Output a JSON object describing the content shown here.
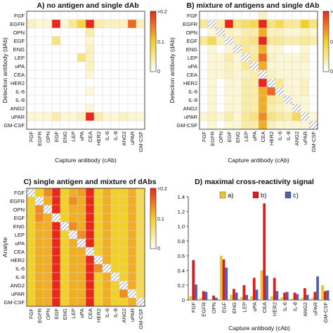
{
  "figure": {
    "colors": {
      "scale_low": "#ffffff",
      "scale_mid": "#f2d02a",
      "scale_high": "#e8281a",
      "hatch": "#777777"
    }
  },
  "chart_data": [
    {
      "type": "heatmap",
      "title": "A) no antigen and single dAb",
      "xlabel": "Capture antibody (cAb)",
      "ylabel": "Detection antibody (dAb)",
      "x_ticks": [
        "FGF",
        "EGFR",
        "OPN",
        "EGF",
        "ENG",
        "LEP",
        "uPA",
        "CEA",
        "HER2",
        "IL-6",
        "IL-8",
        "ANG2",
        "uPAR",
        "GM-CSF"
      ],
      "y_ticks": [
        "FGF",
        "EGFR",
        "OPN",
        "EGF",
        "ENG",
        "LEP",
        "uPA",
        "CEA",
        "HER2",
        "IL-6",
        "IL-8",
        "ANG2",
        "uPAR",
        "GM-CSF"
      ],
      "colorbar": {
        "ticks": [
          ">0.2",
          "0.1",
          "0"
        ],
        "vmin": 0,
        "vmax": 0.2
      },
      "values": [
        [
          0,
          0,
          0,
          0,
          0,
          0,
          0,
          0,
          0,
          0,
          0,
          0,
          0,
          0
        ],
        [
          0.03,
          0.02,
          0.02,
          0.22,
          0.02,
          0.05,
          0.09,
          0.22,
          0.04,
          0.03,
          0.03,
          0.03,
          0.16,
          0.03
        ],
        [
          0,
          0,
          0,
          0,
          0,
          0,
          0,
          0.04,
          0,
          0,
          0,
          0,
          0,
          0
        ],
        [
          0,
          0,
          0,
          0.06,
          0,
          0,
          0,
          0.02,
          0,
          0,
          0,
          0,
          0,
          0
        ],
        [
          0,
          0,
          0,
          0,
          0,
          0,
          0,
          0.03,
          0,
          0,
          0,
          0,
          0,
          0
        ],
        [
          0,
          0,
          0,
          0,
          0,
          0,
          0.06,
          0.03,
          0,
          0,
          0,
          0,
          0,
          0
        ],
        [
          0,
          0,
          0,
          0,
          0,
          0,
          0,
          0.03,
          0,
          0,
          0,
          0,
          0,
          0
        ],
        [
          0,
          0,
          0,
          0,
          0,
          0,
          0,
          0.02,
          0,
          0,
          0,
          0,
          0,
          0
        ],
        [
          0,
          0,
          0,
          0,
          0,
          0,
          0,
          0,
          0,
          0,
          0,
          0,
          0,
          0
        ],
        [
          0,
          0,
          0,
          0,
          0,
          0,
          0,
          0.02,
          0,
          0,
          0,
          0,
          0,
          0
        ],
        [
          0,
          0,
          0,
          0,
          0,
          0,
          0,
          0,
          0,
          0,
          0,
          0,
          0,
          0
        ],
        [
          0,
          0,
          0,
          0,
          0,
          0,
          0,
          0.02,
          0,
          0,
          0,
          0,
          0,
          0
        ],
        [
          0.02,
          0.02,
          0.02,
          0.04,
          0.02,
          0.02,
          0.03,
          0.22,
          0.04,
          0.02,
          0.02,
          0.03,
          0.02,
          0.02
        ],
        [
          0,
          0,
          0,
          0,
          0,
          0,
          0,
          0,
          0,
          0,
          0,
          0,
          0,
          0
        ]
      ],
      "hatched": []
    },
    {
      "type": "heatmap",
      "title": "B) mixture of antigens and single dAb",
      "xlabel": "Capture antibody (cAb)",
      "ylabel": "Detection antibody (dAb)",
      "x_ticks": [
        "FGF",
        "EGFR",
        "OPN",
        "EGF",
        "ENG",
        "LEP",
        "uPA",
        "CEA",
        "HER2",
        "IL-6",
        "IL-8",
        "ANG2",
        "uPAR",
        "GM-CSF"
      ],
      "y_ticks": [
        "FGF",
        "EGFR",
        "OPN",
        "EGF",
        "ENG",
        "LEP",
        "uPA",
        "CEA",
        "HER2",
        "IL-6",
        "IL-8",
        "ANG2",
        "uPAR",
        "GM-CSF"
      ],
      "colorbar": {
        "ticks": [
          ">0.2",
          "0.1",
          "0"
        ],
        "vmin": 0,
        "vmax": 0.2
      },
      "values": [
        [
          0,
          0,
          0,
          0,
          0,
          0,
          0,
          0.03,
          0,
          0,
          0,
          0,
          0,
          0
        ],
        [
          0.05,
          0,
          0.04,
          0.22,
          0.06,
          0.07,
          0.08,
          0.22,
          0.06,
          0.08,
          0.05,
          0.05,
          0.1,
          0.06
        ],
        [
          0,
          0.02,
          0,
          0.03,
          0.02,
          0.04,
          0.04,
          0.12,
          0.03,
          0.03,
          0.02,
          0.02,
          0.03,
          0.02
        ],
        [
          0.05,
          0.08,
          0.03,
          0,
          0.04,
          0.05,
          0.06,
          0.22,
          0.05,
          0.05,
          0.04,
          0.04,
          0.05,
          0.04
        ],
        [
          0,
          0.02,
          0,
          0.02,
          0,
          0.05,
          0.04,
          0.12,
          0.02,
          0.02,
          0,
          0,
          0.02,
          0
        ],
        [
          0,
          0.02,
          0.02,
          0.04,
          0.02,
          0,
          0.05,
          0.16,
          0.03,
          0.02,
          0.02,
          0.02,
          0.03,
          0
        ],
        [
          0,
          0.02,
          0.02,
          0.03,
          0.02,
          0.05,
          0,
          0.12,
          0.02,
          0.02,
          0.02,
          0.02,
          0.02,
          0
        ],
        [
          0,
          0.02,
          0.02,
          0.03,
          0.02,
          0.03,
          0.04,
          0,
          0.03,
          0.02,
          0.02,
          0.02,
          0.02,
          0
        ],
        [
          0,
          0.02,
          0,
          0.02,
          0.02,
          0.04,
          0.04,
          0.22,
          0,
          0.05,
          0.02,
          0.02,
          0.03,
          0
        ],
        [
          0,
          0.02,
          0,
          0.02,
          0.02,
          0.04,
          0.04,
          0.12,
          0.16,
          0,
          0.02,
          0.02,
          0.03,
          0
        ],
        [
          0,
          0.02,
          0,
          0.02,
          0.02,
          0.04,
          0.04,
          0.12,
          0.05,
          0.04,
          0,
          0.02,
          0.02,
          0
        ],
        [
          0,
          0.02,
          0,
          0.02,
          0.02,
          0.04,
          0.04,
          0.12,
          0.04,
          0.03,
          0.02,
          0,
          0.02,
          0
        ],
        [
          0.02,
          0.03,
          0.02,
          0.04,
          0.02,
          0.05,
          0.06,
          0.14,
          0.06,
          0.05,
          0.04,
          0.08,
          0,
          0.02
        ],
        [
          0,
          0.02,
          0,
          0.02,
          0.02,
          0.04,
          0.04,
          0.12,
          0.03,
          0.02,
          0.02,
          0.02,
          0.02,
          0
        ]
      ],
      "hatched": [
        [
          1,
          1
        ],
        [
          2,
          2
        ],
        [
          3,
          3
        ],
        [
          4,
          4
        ],
        [
          5,
          5
        ],
        [
          6,
          6
        ],
        [
          7,
          7
        ],
        [
          8,
          8
        ],
        [
          9,
          9
        ],
        [
          10,
          10
        ],
        [
          11,
          11
        ],
        [
          12,
          12
        ],
        [
          13,
          13
        ]
      ]
    },
    {
      "type": "heatmap",
      "title": "C) single antigen and mixture of dAbs",
      "xlabel": "Capture antibody (cAb)",
      "ylabel": "Analyte",
      "x_ticks": [
        "FGF",
        "EGFR",
        "OPN",
        "EGF",
        "ENG",
        "LEP",
        "uPA",
        "CEA",
        "HER2",
        "IL-6",
        "IL-8",
        "ANG2",
        "uPAR",
        "GM-CSF"
      ],
      "y_ticks": [
        "FGF",
        "EGFR",
        "OPN",
        "EGF",
        "ENG",
        "LEP",
        "uPA",
        "CEA",
        "HER2",
        "IL-6",
        "IL-8",
        "ANG2",
        "uPAR",
        "GM-CSF"
      ],
      "colorbar": {
        "ticks": [
          ">0.2",
          "0.1",
          "0"
        ],
        "vmin": 0,
        "vmax": 0.2
      },
      "values": [
        [
          0,
          0.1,
          0.14,
          0.22,
          0.1,
          0.12,
          0.13,
          0.22,
          0.1,
          0.12,
          0.1,
          0.1,
          0.12,
          0.08
        ],
        [
          0.1,
          0,
          0.12,
          0.22,
          0.1,
          0.14,
          0.12,
          0.22,
          0.1,
          0.12,
          0.1,
          0.1,
          0.12,
          0.08
        ],
        [
          0.1,
          0.14,
          0,
          0.22,
          0.1,
          0.12,
          0.12,
          0.22,
          0.1,
          0.12,
          0.1,
          0.1,
          0.12,
          0.08
        ],
        [
          0.1,
          0.14,
          0.12,
          0,
          0.1,
          0.12,
          0.12,
          0.22,
          0.1,
          0.12,
          0.1,
          0.1,
          0.12,
          0.08
        ],
        [
          0.1,
          0.12,
          0.12,
          0.22,
          0,
          0.14,
          0.12,
          0.22,
          0.1,
          0.12,
          0.1,
          0.1,
          0.12,
          0.08
        ],
        [
          0.1,
          0.12,
          0.12,
          0.22,
          0.1,
          0,
          0.14,
          0.22,
          0.1,
          0.12,
          0.1,
          0.1,
          0.12,
          0.08
        ],
        [
          0.1,
          0.12,
          0.12,
          0.22,
          0.1,
          0.12,
          0,
          0.22,
          0.1,
          0.12,
          0.1,
          0.1,
          0.12,
          0.08
        ],
        [
          0.1,
          0.12,
          0.12,
          0.22,
          0.1,
          0.12,
          0.12,
          0,
          0.1,
          0.12,
          0.1,
          0.1,
          0.12,
          0.08
        ],
        [
          0.1,
          0.12,
          0.12,
          0.22,
          0.1,
          0.12,
          0.12,
          0.22,
          0,
          0.12,
          0.1,
          0.1,
          0.12,
          0.08
        ],
        [
          0.1,
          0.12,
          0.12,
          0.22,
          0.1,
          0.12,
          0.12,
          0.22,
          0.14,
          0,
          0.1,
          0.1,
          0.12,
          0.08
        ],
        [
          0.1,
          0.12,
          0.12,
          0.22,
          0.1,
          0.12,
          0.12,
          0.22,
          0.1,
          0.12,
          0,
          0.1,
          0.12,
          0.08
        ],
        [
          0.1,
          0.12,
          0.12,
          0.22,
          0.1,
          0.12,
          0.12,
          0.22,
          0.1,
          0.12,
          0.1,
          0,
          0.12,
          0.08
        ],
        [
          0.1,
          0.12,
          0.12,
          0.22,
          0.1,
          0.12,
          0.12,
          0.22,
          0.1,
          0.12,
          0.1,
          0.14,
          0,
          0.08
        ],
        [
          0.1,
          0.12,
          0.12,
          0.22,
          0.1,
          0.12,
          0.12,
          0.22,
          0.1,
          0.12,
          0.1,
          0.1,
          0.12,
          0
        ]
      ],
      "hatched": [
        [
          0,
          0
        ],
        [
          1,
          1
        ],
        [
          2,
          2
        ],
        [
          3,
          3
        ],
        [
          4,
          4
        ],
        [
          5,
          5
        ],
        [
          6,
          6
        ],
        [
          7,
          7
        ],
        [
          8,
          8
        ],
        [
          9,
          9
        ],
        [
          10,
          10
        ],
        [
          11,
          11
        ],
        [
          12,
          12
        ],
        [
          13,
          13
        ]
      ]
    },
    {
      "type": "bar",
      "title": "D) maximal cross-reactivity signal",
      "xlabel": "Capture antibody (cAb)",
      "ylabel": "",
      "categories": [
        "FGF",
        "EGFR",
        "OPN",
        "EGF",
        "ENG",
        "LEP",
        "uPA",
        "CEA",
        "HER2",
        "IL-6",
        "IL-8",
        "ANG2",
        "uPAR",
        "GM-CSF"
      ],
      "ylim": [
        0,
        1.4
      ],
      "yticks": [
        0,
        0.2,
        0.4,
        0.6,
        0.8,
        1.0,
        1.2,
        1.4
      ],
      "legend_position": "top",
      "series": [
        {
          "name": "a)",
          "color": "#f2c12e",
          "values": [
            0.05,
            0.03,
            0.01,
            0.6,
            0.07,
            0.04,
            0.05,
            0.4,
            0.05,
            0.04,
            0.02,
            0.03,
            0.03,
            0.2
          ]
        },
        {
          "name": "b)",
          "color": "#d81e1e",
          "values": [
            0.54,
            0.12,
            0.06,
            0.55,
            0.15,
            0.2,
            0.3,
            1.31,
            0.3,
            0.1,
            0.1,
            0.16,
            0.11,
            0.12
          ]
        },
        {
          "name": "c)",
          "color": "#5060b0",
          "values": [
            0.21,
            0.11,
            0.03,
            0.44,
            0.1,
            0.07,
            0.14,
            0.33,
            0.12,
            0.11,
            0.08,
            0.07,
            0.32,
            0.13
          ]
        }
      ]
    }
  ]
}
